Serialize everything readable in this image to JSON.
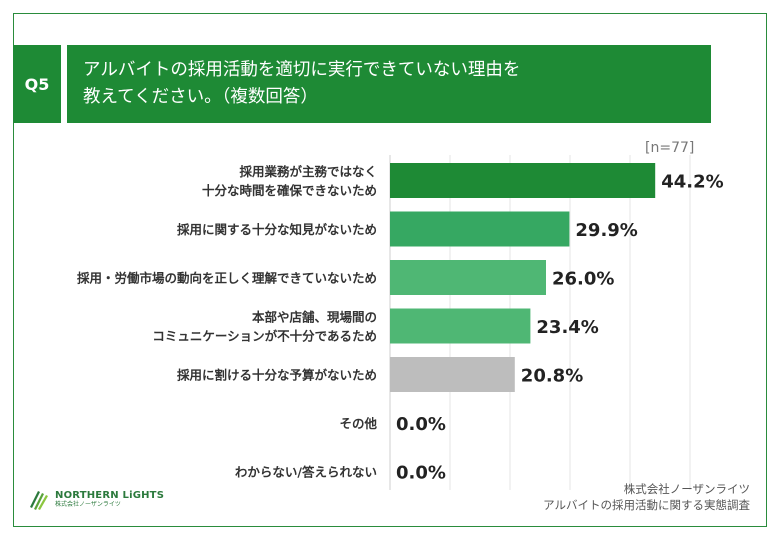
{
  "header": {
    "question_no": "Q5",
    "title_lines": [
      "アルバイトの採用活動を適切に実行できていない理由を",
      "教えてください。（複数回答）"
    ]
  },
  "sample_size_label": "[n=77]",
  "source": {
    "line1": "株式会社ノーザンライツ",
    "line2": "アルバイトの採用活動に関する実態調査"
  },
  "logo": {
    "name": "NORTHERN LiGHTS",
    "sub": "株式会社ノーザンライツ",
    "icon": "leaf-stripes-icon"
  },
  "colors": {
    "brand_green": "#1e8a35",
    "bar_dark": "#1e8a35",
    "bar_mid": "#36a862",
    "bar_light": "#4fb774",
    "bar_gray": "#bdbdbd"
  },
  "chart_data": {
    "type": "bar",
    "orientation": "horizontal",
    "title": "アルバイトの採用活動を適切に実行できていない理由を教えてください。（複数回答）",
    "categories": [
      [
        "採用業務が主務ではなく",
        "十分な時間を確保できないため"
      ],
      [
        "採用に関する十分な知見がないため"
      ],
      [
        "採用・労働市場の動向を正しく理解できていないため"
      ],
      [
        "本部や店舗、現場間の",
        "コミュニケーションが不十分であるため"
      ],
      [
        "採用に割ける十分な予算がないため"
      ],
      [
        "その他"
      ],
      [
        "わからない/答えられない"
      ]
    ],
    "values": [
      44.2,
      29.9,
      26.0,
      23.4,
      20.8,
      0.0,
      0.0
    ],
    "value_labels": [
      "44.2%",
      "29.9%",
      "26.0%",
      "23.4%",
      "20.8%",
      "0.0%",
      "0.0%"
    ],
    "bar_colors": [
      "#1e8a35",
      "#36a862",
      "#4fb774",
      "#4fb774",
      "#bdbdbd",
      "#bdbdbd",
      "#bdbdbd"
    ],
    "unit": "%",
    "xlim": [
      0,
      50
    ],
    "grid": true,
    "legend": "none"
  }
}
